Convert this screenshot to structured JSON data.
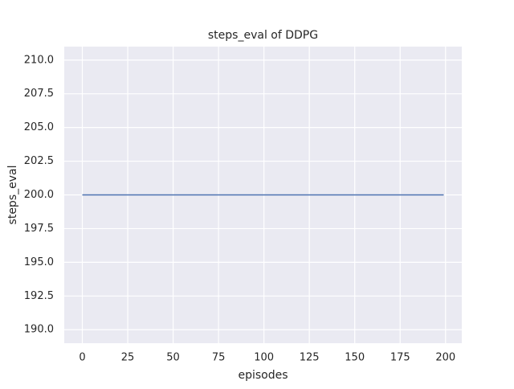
{
  "chart_data": {
    "type": "line",
    "title": "steps_eval of DDPG",
    "x_label": "episodes",
    "y_label": "steps_eval",
    "x": [
      0,
      1,
      2,
      3,
      4,
      5,
      6,
      7,
      8,
      9,
      10,
      11,
      12,
      13,
      14,
      15,
      16,
      17,
      18,
      19,
      20,
      21,
      22,
      23,
      24,
      25,
      26,
      27,
      28,
      29,
      30,
      31,
      32,
      33,
      34,
      35,
      36,
      37,
      38,
      39,
      40,
      41,
      42,
      43,
      44,
      45,
      46,
      47,
      48,
      49,
      50,
      51,
      52,
      53,
      54,
      55,
      56,
      57,
      58,
      59,
      60,
      61,
      62,
      63,
      64,
      65,
      66,
      67,
      68,
      69,
      70,
      71,
      72,
      73,
      74,
      75,
      76,
      77,
      78,
      79,
      80,
      81,
      82,
      83,
      84,
      85,
      86,
      87,
      88,
      89,
      90,
      91,
      92,
      93,
      94,
      95,
      96,
      97,
      98,
      99,
      100,
      101,
      102,
      103,
      104,
      105,
      106,
      107,
      108,
      109,
      110,
      111,
      112,
      113,
      114,
      115,
      116,
      117,
      118,
      119,
      120,
      121,
      122,
      123,
      124,
      125,
      126,
      127,
      128,
      129,
      130,
      131,
      132,
      133,
      134,
      135,
      136,
      137,
      138,
      139,
      140,
      141,
      142,
      143,
      144,
      145,
      146,
      147,
      148,
      149,
      150,
      151,
      152,
      153,
      154,
      155,
      156,
      157,
      158,
      159,
      160,
      161,
      162,
      163,
      164,
      165,
      166,
      167,
      168,
      169,
      170,
      171,
      172,
      173,
      174,
      175,
      176,
      177,
      178,
      179,
      180,
      181,
      182,
      183,
      184,
      185,
      186,
      187,
      188,
      189,
      190,
      191,
      192,
      193,
      194,
      195,
      196,
      197,
      198,
      199
    ],
    "values": [
      200,
      200,
      200,
      200,
      200,
      200,
      200,
      200,
      200,
      200,
      200,
      200,
      200,
      200,
      200,
      200,
      200,
      200,
      200,
      200,
      200,
      200,
      200,
      200,
      200,
      200,
      200,
      200,
      200,
      200,
      200,
      200,
      200,
      200,
      200,
      200,
      200,
      200,
      200,
      200,
      200,
      200,
      200,
      200,
      200,
      200,
      200,
      200,
      200,
      200,
      200,
      200,
      200,
      200,
      200,
      200,
      200,
      200,
      200,
      200,
      200,
      200,
      200,
      200,
      200,
      200,
      200,
      200,
      200,
      200,
      200,
      200,
      200,
      200,
      200,
      200,
      200,
      200,
      200,
      200,
      200,
      200,
      200,
      200,
      200,
      200,
      200,
      200,
      200,
      200,
      200,
      200,
      200,
      200,
      200,
      200,
      200,
      200,
      200,
      200,
      200,
      200,
      200,
      200,
      200,
      200,
      200,
      200,
      200,
      200,
      200,
      200,
      200,
      200,
      200,
      200,
      200,
      200,
      200,
      200,
      200,
      200,
      200,
      200,
      200,
      200,
      200,
      200,
      200,
      200,
      200,
      200,
      200,
      200,
      200,
      200,
      200,
      200,
      200,
      200,
      200,
      200,
      200,
      200,
      200,
      200,
      200,
      200,
      200,
      200,
      200,
      200,
      200,
      200,
      200,
      200,
      200,
      200,
      200,
      200,
      200,
      200,
      200,
      200,
      200,
      200,
      200,
      200,
      200,
      200,
      200,
      200,
      200,
      200,
      200,
      200,
      200,
      200,
      200,
      200,
      200,
      200,
      200,
      200,
      200,
      200,
      200,
      200,
      200,
      200,
      200,
      200,
      200,
      200,
      200,
      200,
      200,
      200,
      200,
      200
    ],
    "color": "#4c72b0",
    "xlim": [
      -9.95,
      208.95
    ],
    "xticks": [
      0,
      25,
      50,
      75,
      100,
      125,
      150,
      175,
      200
    ],
    "ylim": [
      189,
      211
    ],
    "yticks": [
      {
        "value": 190,
        "label": "190.0"
      },
      192.5,
      {
        "value": 195,
        "label": "195.0"
      },
      197.5,
      {
        "value": 200,
        "label": "200.0"
      },
      202.5,
      {
        "value": 205,
        "label": "205.0"
      },
      207.5,
      {
        "value": 210,
        "label": "210.0"
      }
    ],
    "grid": true
  }
}
